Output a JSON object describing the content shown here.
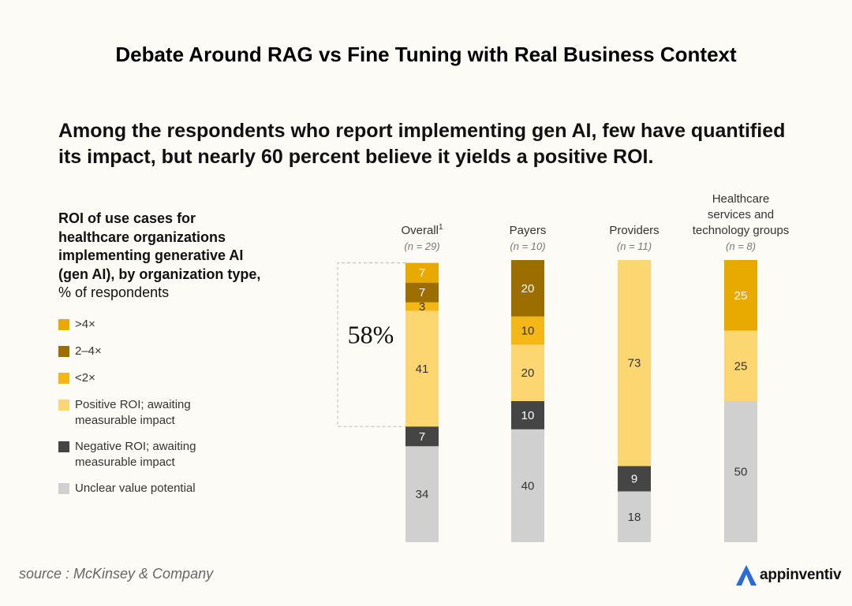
{
  "page_title": "Debate Around RAG vs Fine Tuning with Real Business Context",
  "headline": "Among the respondents who report implementing gen AI, few have quantified its impact, but nearly 60 percent believe it yields a positive ROI.",
  "chart_title": {
    "bold": "ROI of use cases for healthcare organizations implementing generative AI (gen AI), by organization type,",
    "regular": " % of respondents"
  },
  "legend": [
    {
      "label": ">4×",
      "color": "#e8a900"
    },
    {
      "label": "2–4×",
      "color": "#9c6e00"
    },
    {
      "label": "<2×",
      "color": "#f4b718"
    },
    {
      "label": "Positive ROI; awaiting measurable impact",
      "color": "#fcd670"
    },
    {
      "label": "Negative ROI; awaiting measurable impact",
      "color": "#454545"
    },
    {
      "label": "Unclear value potential",
      "color": "#d0d0d0"
    }
  ],
  "chart_data": {
    "type": "bar",
    "stacked": true,
    "orientation": "vertical",
    "unit": "% of respondents",
    "categories": [
      {
        "lines": [
          "Overall"
        ],
        "superscript": "1",
        "n": "(n = 29)"
      },
      {
        "lines": [
          "Payers"
        ],
        "superscript": "",
        "n": "(n = 10)"
      },
      {
        "lines": [
          "Providers"
        ],
        "superscript": "",
        "n": "(n = 11)"
      },
      {
        "lines": [
          "Healthcare",
          "services and",
          "technology groups"
        ],
        "superscript": "",
        "n": "(n = 8)"
      }
    ],
    "series": [
      {
        "name": "Unclear value potential",
        "color": "#d0d0d0",
        "label_color": "#333333",
        "values": [
          34,
          40,
          18,
          50
        ]
      },
      {
        "name": "Negative ROI; awaiting measurable impact",
        "color": "#454545",
        "label_color": "#ffffff",
        "values": [
          7,
          10,
          9,
          0
        ]
      },
      {
        "name": "Positive ROI; awaiting measurable impact",
        "color": "#fcd670",
        "label_color": "#333333",
        "values": [
          41,
          20,
          73,
          25
        ]
      },
      {
        "name": "<2×",
        "color": "#f4b718",
        "label_color": "#333333",
        "values": [
          3,
          10,
          0,
          0
        ]
      },
      {
        "name": "2–4×",
        "color": "#9c6e00",
        "label_color": "#ffffff",
        "values": [
          7,
          20,
          0,
          0
        ]
      },
      {
        "name": ">4×",
        "color": "#e8a900",
        "label_color": "#ffffff",
        "values": [
          7,
          0,
          0,
          25
        ]
      }
    ],
    "annotation": {
      "text": "58%",
      "category_index": 0,
      "spans_series": [
        "Positive ROI; awaiting measurable impact",
        "<2×",
        "2–4×",
        ">4×"
      ]
    },
    "ylim": [
      0,
      100
    ]
  },
  "source": "source : McKinsey & Company",
  "brand": {
    "name": "appinventiv",
    "color": "#2a6bd6"
  }
}
